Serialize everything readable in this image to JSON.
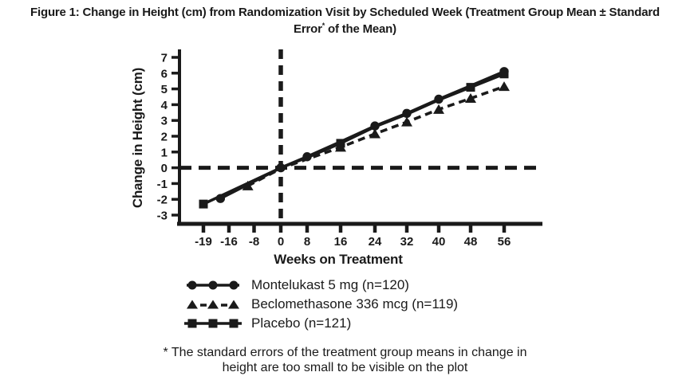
{
  "page": {
    "background": "#ffffff",
    "ink": "#1a1a1a"
  },
  "figure": {
    "title_line1": "Figure 1: Change in Height (cm) from Randomization Visit by Scheduled Week (Treatment Group Mean ± Standard",
    "title_line2_pre": "Error",
    "title_line2_sup": "*",
    "title_line2_post": " of the Mean)",
    "footnote_line1": "* The standard errors of the treatment group means in change in",
    "footnote_line2": "height are too small to be visible on the plot"
  },
  "chart_data": {
    "type": "line",
    "title": "Figure 1: Change in Height (cm) from Randomization Visit by Scheduled Week (Treatment Group Mean ± Standard Error* of the Mean)",
    "xlabel": "Weeks on Treatment",
    "ylabel": "Change in Height (cm)",
    "x_ticks": [
      -19,
      -16,
      -8,
      0,
      8,
      16,
      24,
      32,
      40,
      48,
      56
    ],
    "y_ticks": [
      7,
      6,
      5,
      4,
      3,
      2,
      1,
      0,
      -1,
      -2,
      -3
    ],
    "ylim": [
      -3,
      7
    ],
    "grid": false,
    "legend_position": "below",
    "reference_lines": [
      {
        "axis": "y",
        "value": 0,
        "style": "dashed"
      },
      {
        "axis": "x",
        "value": 0,
        "style": "dashed"
      }
    ],
    "series": [
      {
        "name": "Montelukast 5 mg (n=120)",
        "marker": "circle",
        "line": "solid",
        "points": [
          {
            "week": -17,
            "value": -1.95,
            "marker": true
          },
          {
            "week": 0,
            "value": 0,
            "marker": true
          },
          {
            "week": 8,
            "value": 0.7,
            "marker": true
          },
          {
            "week": 16,
            "value": 1.65,
            "marker": false
          },
          {
            "week": 24,
            "value": 2.65,
            "marker": true
          },
          {
            "week": 32,
            "value": 3.45,
            "marker": true
          },
          {
            "week": 40,
            "value": 4.35,
            "marker": true
          },
          {
            "week": 48,
            "value": 5.2,
            "marker": false
          },
          {
            "week": 56,
            "value": 6.1,
            "marker": true
          }
        ]
      },
      {
        "name": "Beclomethasone 336 mcg (n=119)",
        "marker": "triangle",
        "line": "dashed",
        "points": [
          {
            "week": -10,
            "value": -1.15,
            "marker": true
          },
          {
            "week": 0,
            "value": -0.05,
            "marker": false
          },
          {
            "week": 8,
            "value": 0.55,
            "marker": false
          },
          {
            "week": 16,
            "value": 1.3,
            "marker": true
          },
          {
            "week": 24,
            "value": 2.15,
            "marker": true
          },
          {
            "week": 32,
            "value": 2.9,
            "marker": true
          },
          {
            "week": 40,
            "value": 3.7,
            "marker": true
          },
          {
            "week": 48,
            "value": 4.4,
            "marker": true
          },
          {
            "week": 56,
            "value": 5.15,
            "marker": true
          }
        ]
      },
      {
        "name": "Placebo (n=121)",
        "marker": "square",
        "line": "solid",
        "points": [
          {
            "week": -19,
            "value": -2.3,
            "marker": true
          },
          {
            "week": 0,
            "value": 0,
            "marker": false
          },
          {
            "week": 8,
            "value": 0.65,
            "marker": false
          },
          {
            "week": 16,
            "value": 1.55,
            "marker": true
          },
          {
            "week": 24,
            "value": 2.6,
            "marker": false
          },
          {
            "week": 32,
            "value": 3.4,
            "marker": false
          },
          {
            "week": 40,
            "value": 4.3,
            "marker": false
          },
          {
            "week": 48,
            "value": 5.1,
            "marker": true
          },
          {
            "week": 56,
            "value": 5.95,
            "marker": true
          }
        ]
      }
    ]
  }
}
